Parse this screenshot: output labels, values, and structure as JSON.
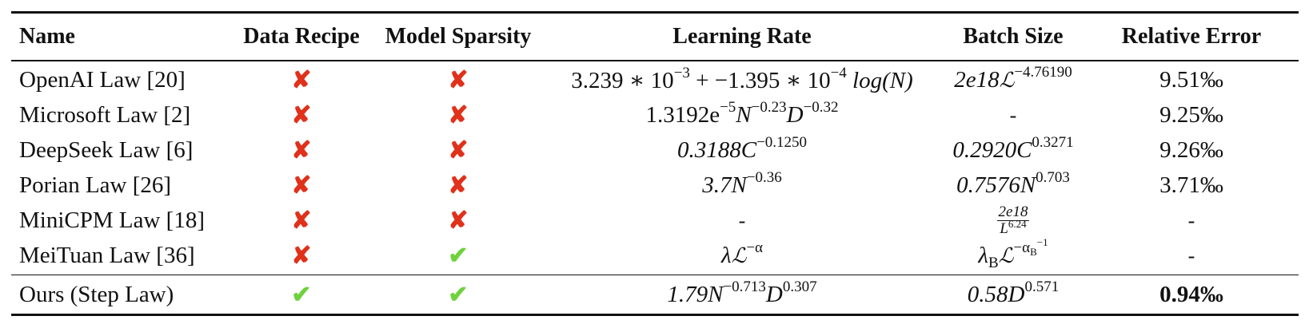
{
  "table": {
    "headers": [
      "Name",
      "Data Recipe",
      "Model Sparsity",
      "Learning Rate",
      "Batch Size",
      "Relative Error"
    ],
    "rows": [
      {
        "name": "OpenAI Law [20]",
        "data_recipe": "✘",
        "model_sparsity": "✘",
        "lr": {
          "a": "3.239 ∗ 10",
          "a_exp": "−3",
          "b": " + −1.395 ∗ 10",
          "b_exp": "−4",
          "c": "log(N)"
        },
        "bs": {
          "a": "2e18",
          "sym": "ℒ",
          "exp": "−4.76190"
        },
        "error": "9.51‰"
      },
      {
        "name": "Microsoft Law [2]",
        "data_recipe": "✘",
        "model_sparsity": "✘",
        "lr": {
          "a": "1.3192e",
          "a_exp": "−5",
          "b": "N",
          "b_exp": "−0.23",
          "c": "D",
          "c_exp": "−0.32"
        },
        "bs": "-",
        "error": "9.25‰"
      },
      {
        "name": "DeepSeek Law [6]",
        "data_recipe": "✘",
        "model_sparsity": "✘",
        "lr": {
          "a": "0.3188C",
          "exp": "−0.1250"
        },
        "bs": {
          "a": "0.2920C",
          "exp": "0.3271"
        },
        "error": "9.26‰"
      },
      {
        "name": "Porian Law [26]",
        "data_recipe": "✘",
        "model_sparsity": "✘",
        "lr": {
          "a": "3.7N",
          "exp": "−0.36"
        },
        "bs": {
          "a": "0.7576N",
          "exp": "0.703"
        },
        "error": "3.71‰"
      },
      {
        "name": "MiniCPM Law [18]",
        "data_recipe": "✘",
        "model_sparsity": "✘",
        "lr": "-",
        "bs": {
          "num": "2e18",
          "den": "L",
          "den_exp": "6.24"
        },
        "error": "-"
      },
      {
        "name": "MeiTuan Law [36]",
        "data_recipe": "✘",
        "model_sparsity": "✔",
        "lr": {
          "a": "λ",
          "sym": "ℒ",
          "exp": "−α"
        },
        "bs": {
          "a": "λ",
          "a_sub": "B",
          "sym": "ℒ",
          "exp": "−α",
          "exp_sub": "B",
          "exp_sup": "−1"
        },
        "error": "-"
      }
    ],
    "ours": {
      "name": "Ours (Step Law)",
      "data_recipe": "✔",
      "model_sparsity": "✔",
      "lr": {
        "a": "1.79N",
        "a_exp": "−0.713",
        "b": "D",
        "b_exp": "0.307"
      },
      "bs": {
        "a": "0.58D",
        "exp": "0.571"
      },
      "error": "0.94‰"
    },
    "colors": {
      "cross": "#e0311b",
      "check": "#6fd13d"
    }
  }
}
